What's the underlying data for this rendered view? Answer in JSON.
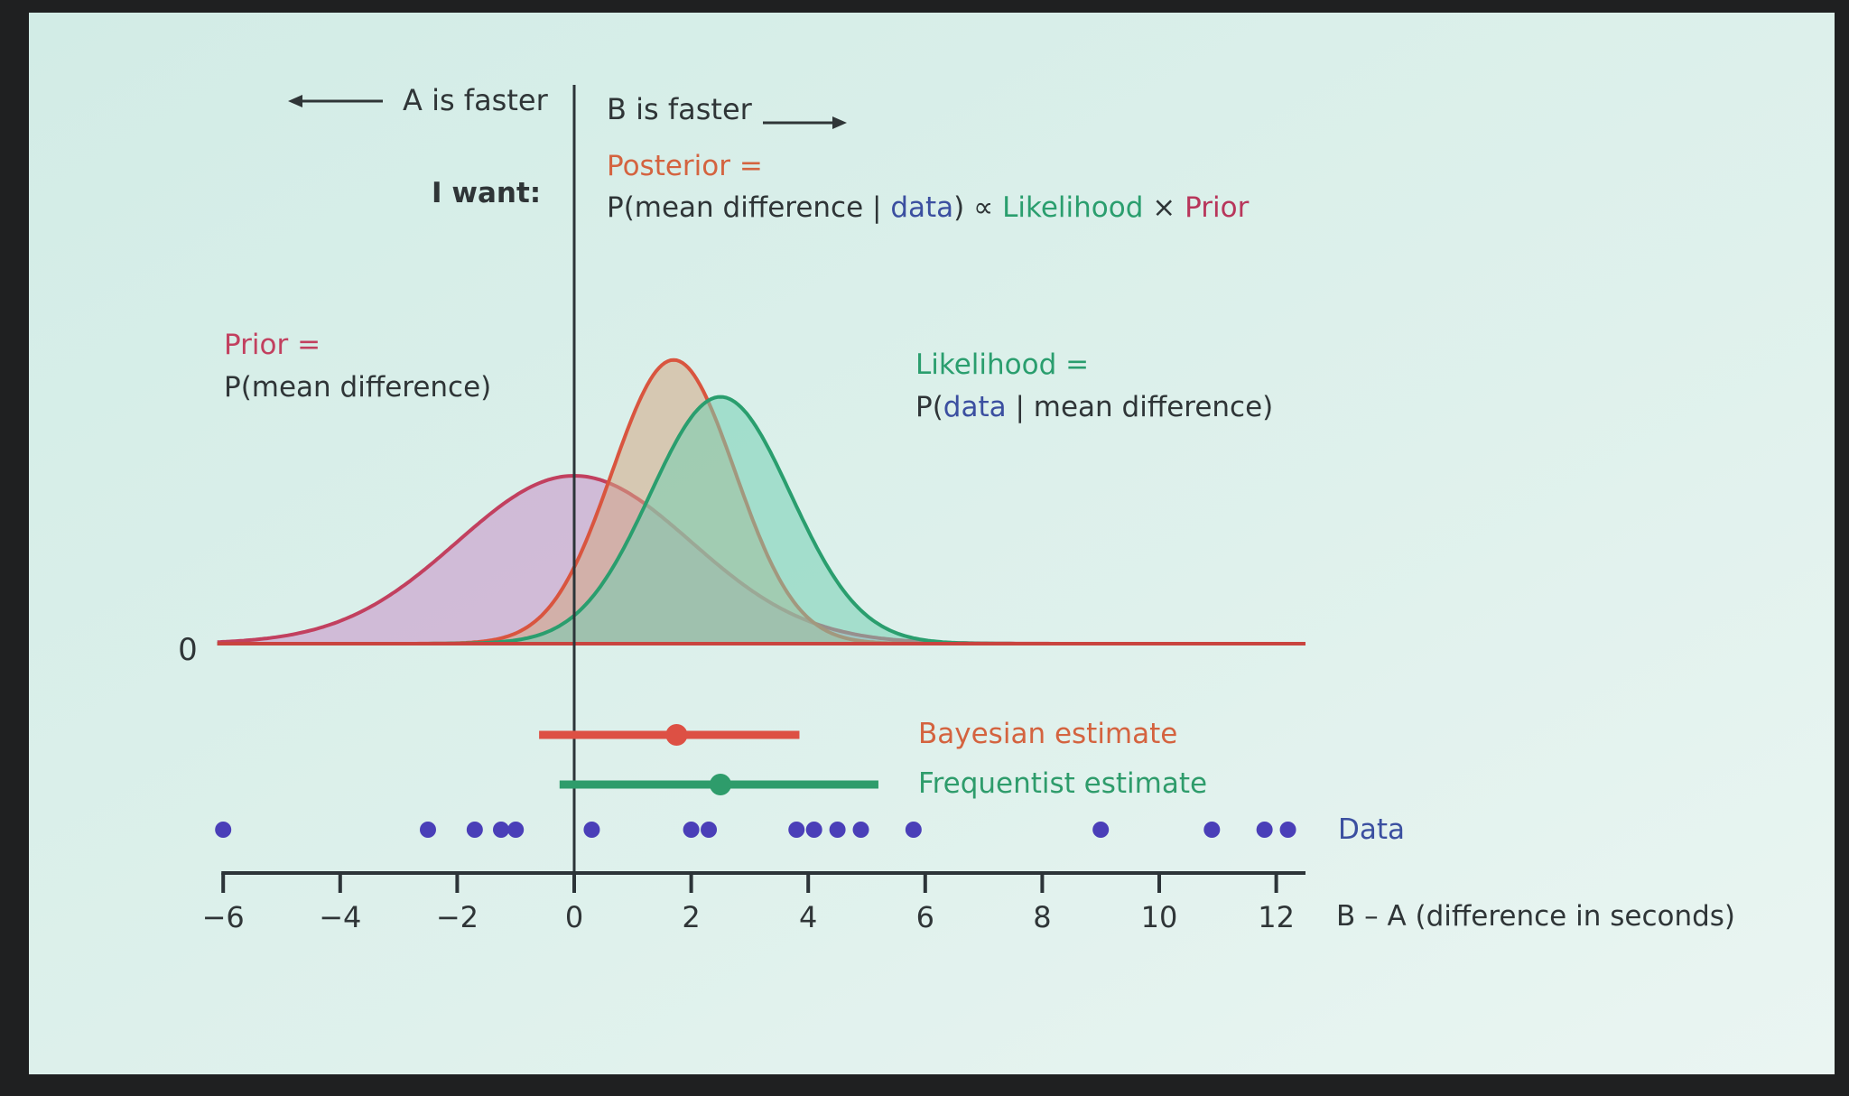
{
  "chart_data": {
    "type": "area",
    "xlabel": "B – A (difference in seconds)",
    "xticks": [
      -6,
      -4,
      -2,
      0,
      2,
      4,
      6,
      8,
      10,
      12
    ],
    "xtick_labels": [
      "−6",
      "−4",
      "−2",
      "0",
      "2",
      "4",
      "6",
      "8",
      "10",
      "12"
    ],
    "xlim": [
      -6.1,
      12.5
    ],
    "y_zero_label": "0",
    "header": {
      "left": "A is faster",
      "right": "B is faster",
      "want": "I want:"
    },
    "posterior_formula": {
      "title": "Posterior =",
      "p_open": "P(mean difference | ",
      "data_word": "data",
      "p_close": ") ∝ ",
      "likelihood_word": "Likelihood",
      "times": " × ",
      "prior_word": "Prior"
    },
    "prior_label": {
      "title": "Prior =",
      "expr": "P(mean difference)"
    },
    "likelihood_label": {
      "title": "Likelihood =",
      "p_open": "P(",
      "data_word": "data",
      "p_close": " | mean difference)"
    },
    "series": [
      {
        "name": "Prior",
        "mean": 0,
        "sd": 2.0,
        "peak": 1.0,
        "stroke": "#c2405f",
        "fill": "#c98fc6"
      },
      {
        "name": "Posterior",
        "mean": 1.7,
        "sd": 1.05,
        "peak": 1.69,
        "stroke": "#d9553f",
        "fill": "#d4a784"
      },
      {
        "name": "Likelihood",
        "mean": 2.5,
        "sd": 1.2,
        "peak": 1.47,
        "stroke": "#2a9e6e",
        "fill": "#74cfb2"
      }
    ],
    "estimates": [
      {
        "name": "Bayesian estimate",
        "point": 1.75,
        "low": -0.6,
        "high": 3.85,
        "color": "#dd5044"
      },
      {
        "name": "Frequentist estimate",
        "point": 2.5,
        "low": -0.25,
        "high": 5.2,
        "color": "#2e9c6b"
      }
    ],
    "data_label": "Data",
    "data_points": [
      -6,
      -2.5,
      -1.7,
      -1.25,
      -1.0,
      0.3,
      2.0,
      2.3,
      3.8,
      4.1,
      4.5,
      4.9,
      5.8,
      9.0,
      10.9,
      11.8,
      12.2
    ],
    "colors": {
      "axis": "#2c3438",
      "data": "#4a3fb8",
      "background": "#d6eee8",
      "text": "#2f3537"
    }
  }
}
